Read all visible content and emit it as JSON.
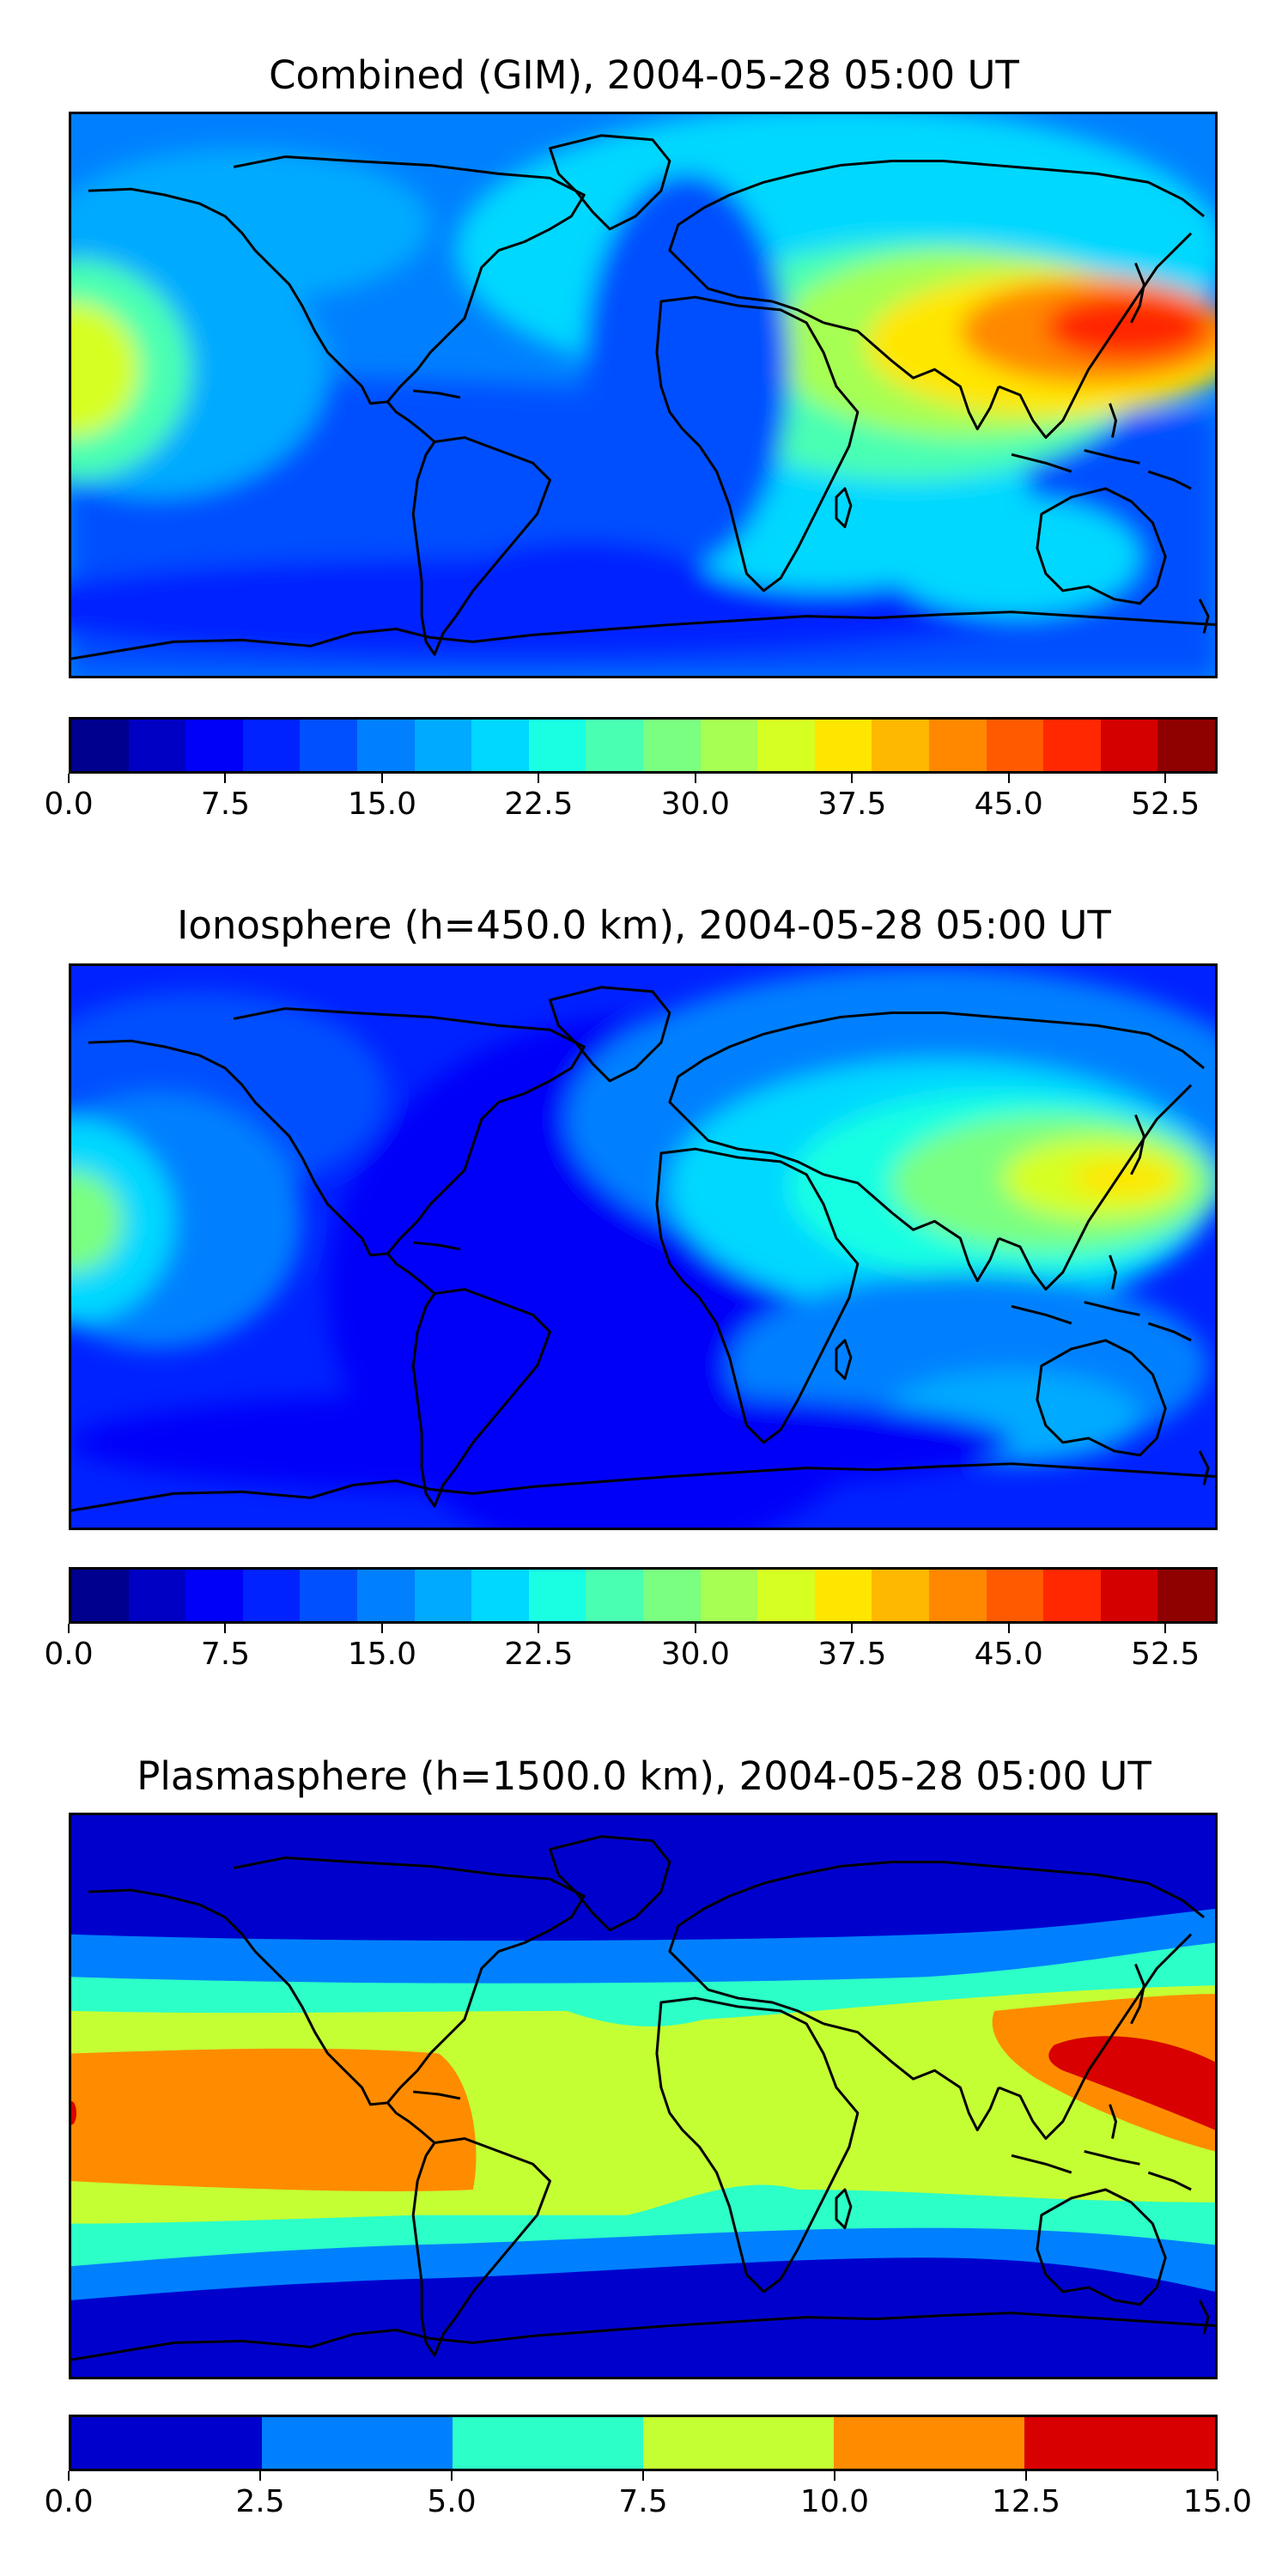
{
  "panels": [
    {
      "title": "Combined (GIM), 2004-05-28 05:00 UT",
      "colorbar": {
        "colors": [
          "#00008f",
          "#0000c4",
          "#0000f8",
          "#0022ff",
          "#0050ff",
          "#0080ff",
          "#00aaff",
          "#00d8ff",
          "#18ffe2",
          "#48ffb2",
          "#7aff80",
          "#a6ff52",
          "#d6ff22",
          "#ffe600",
          "#ffb800",
          "#ff8800",
          "#ff5a00",
          "#ff2800",
          "#d40000",
          "#8f0000"
        ],
        "min": 0.0,
        "max": 55.0,
        "ticks": [
          {
            "value": 0.0,
            "label": "0.0"
          },
          {
            "value": 7.5,
            "label": "7.5"
          },
          {
            "value": 15.0,
            "label": "15.0"
          },
          {
            "value": 22.5,
            "label": "22.5"
          },
          {
            "value": 30.0,
            "label": "30.0"
          },
          {
            "value": 37.5,
            "label": "37.5"
          },
          {
            "value": 45.0,
            "label": "45.0"
          },
          {
            "value": 52.5,
            "label": "52.5"
          }
        ]
      }
    },
    {
      "title": "Ionosphere  (h=450.0 km), 2004-05-28 05:00 UT",
      "colorbar": {
        "colors": [
          "#00008f",
          "#0000c4",
          "#0000f8",
          "#0022ff",
          "#0050ff",
          "#0080ff",
          "#00aaff",
          "#00d8ff",
          "#18ffe2",
          "#48ffb2",
          "#7aff80",
          "#a6ff52",
          "#d6ff22",
          "#ffe600",
          "#ffb800",
          "#ff8800",
          "#ff5a00",
          "#ff2800",
          "#d40000",
          "#8f0000"
        ],
        "min": 0.0,
        "max": 55.0,
        "ticks": [
          {
            "value": 0.0,
            "label": "0.0"
          },
          {
            "value": 7.5,
            "label": "7.5"
          },
          {
            "value": 15.0,
            "label": "15.0"
          },
          {
            "value": 22.5,
            "label": "22.5"
          },
          {
            "value": 30.0,
            "label": "30.0"
          },
          {
            "value": 37.5,
            "label": "37.5"
          },
          {
            "value": 45.0,
            "label": "45.0"
          },
          {
            "value": 52.5,
            "label": "52.5"
          }
        ]
      }
    },
    {
      "title": "Plasmasphere (h=1500.0 km), 2004-05-28 05:00 UT",
      "colorbar": {
        "colors": [
          "#0000cd",
          "#0080ff",
          "#2cffc8",
          "#c4ff34",
          "#ff8c00",
          "#d80000"
        ],
        "min": 0.0,
        "max": 15.0,
        "ticks": [
          {
            "value": 0.0,
            "label": "0.0"
          },
          {
            "value": 2.5,
            "label": "2.5"
          },
          {
            "value": 5.0,
            "label": "5.0"
          },
          {
            "value": 7.5,
            "label": "7.5"
          },
          {
            "value": 10.0,
            "label": "10.0"
          },
          {
            "value": 12.5,
            "label": "12.5"
          },
          {
            "value": 15.0,
            "label": "15.0"
          }
        ]
      }
    }
  ]
}
